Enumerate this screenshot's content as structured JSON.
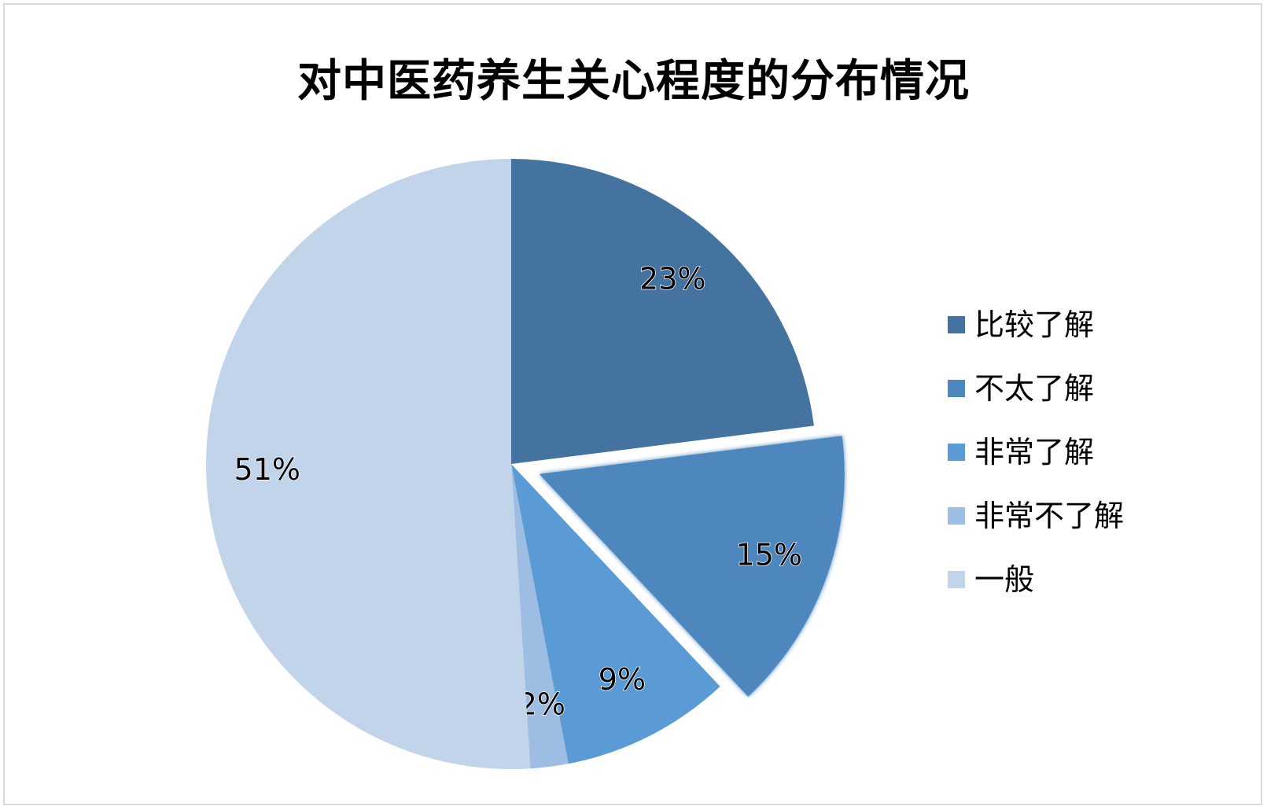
{
  "chart_data": {
    "type": "pie",
    "title": "对中医药养生关心程度的分布情况",
    "slices": [
      {
        "label": "比较了解",
        "value": 23,
        "display": "23%",
        "color": "#44739f",
        "exploded": false
      },
      {
        "label": "不太了解",
        "value": 15,
        "display": "15%",
        "color": "#4e87be",
        "exploded": true
      },
      {
        "label": "非常了解",
        "value": 9,
        "display": "9%",
        "color": "#5b9bd5",
        "exploded": false
      },
      {
        "label": "非常不了解",
        "value": 2,
        "display": "2%",
        "color": "#9dbde3",
        "exploded": false
      },
      {
        "label": "一般",
        "value": 51,
        "display": "51%",
        "color": "#c2d4ea",
        "exploded": false
      }
    ],
    "legend_position": "right"
  }
}
